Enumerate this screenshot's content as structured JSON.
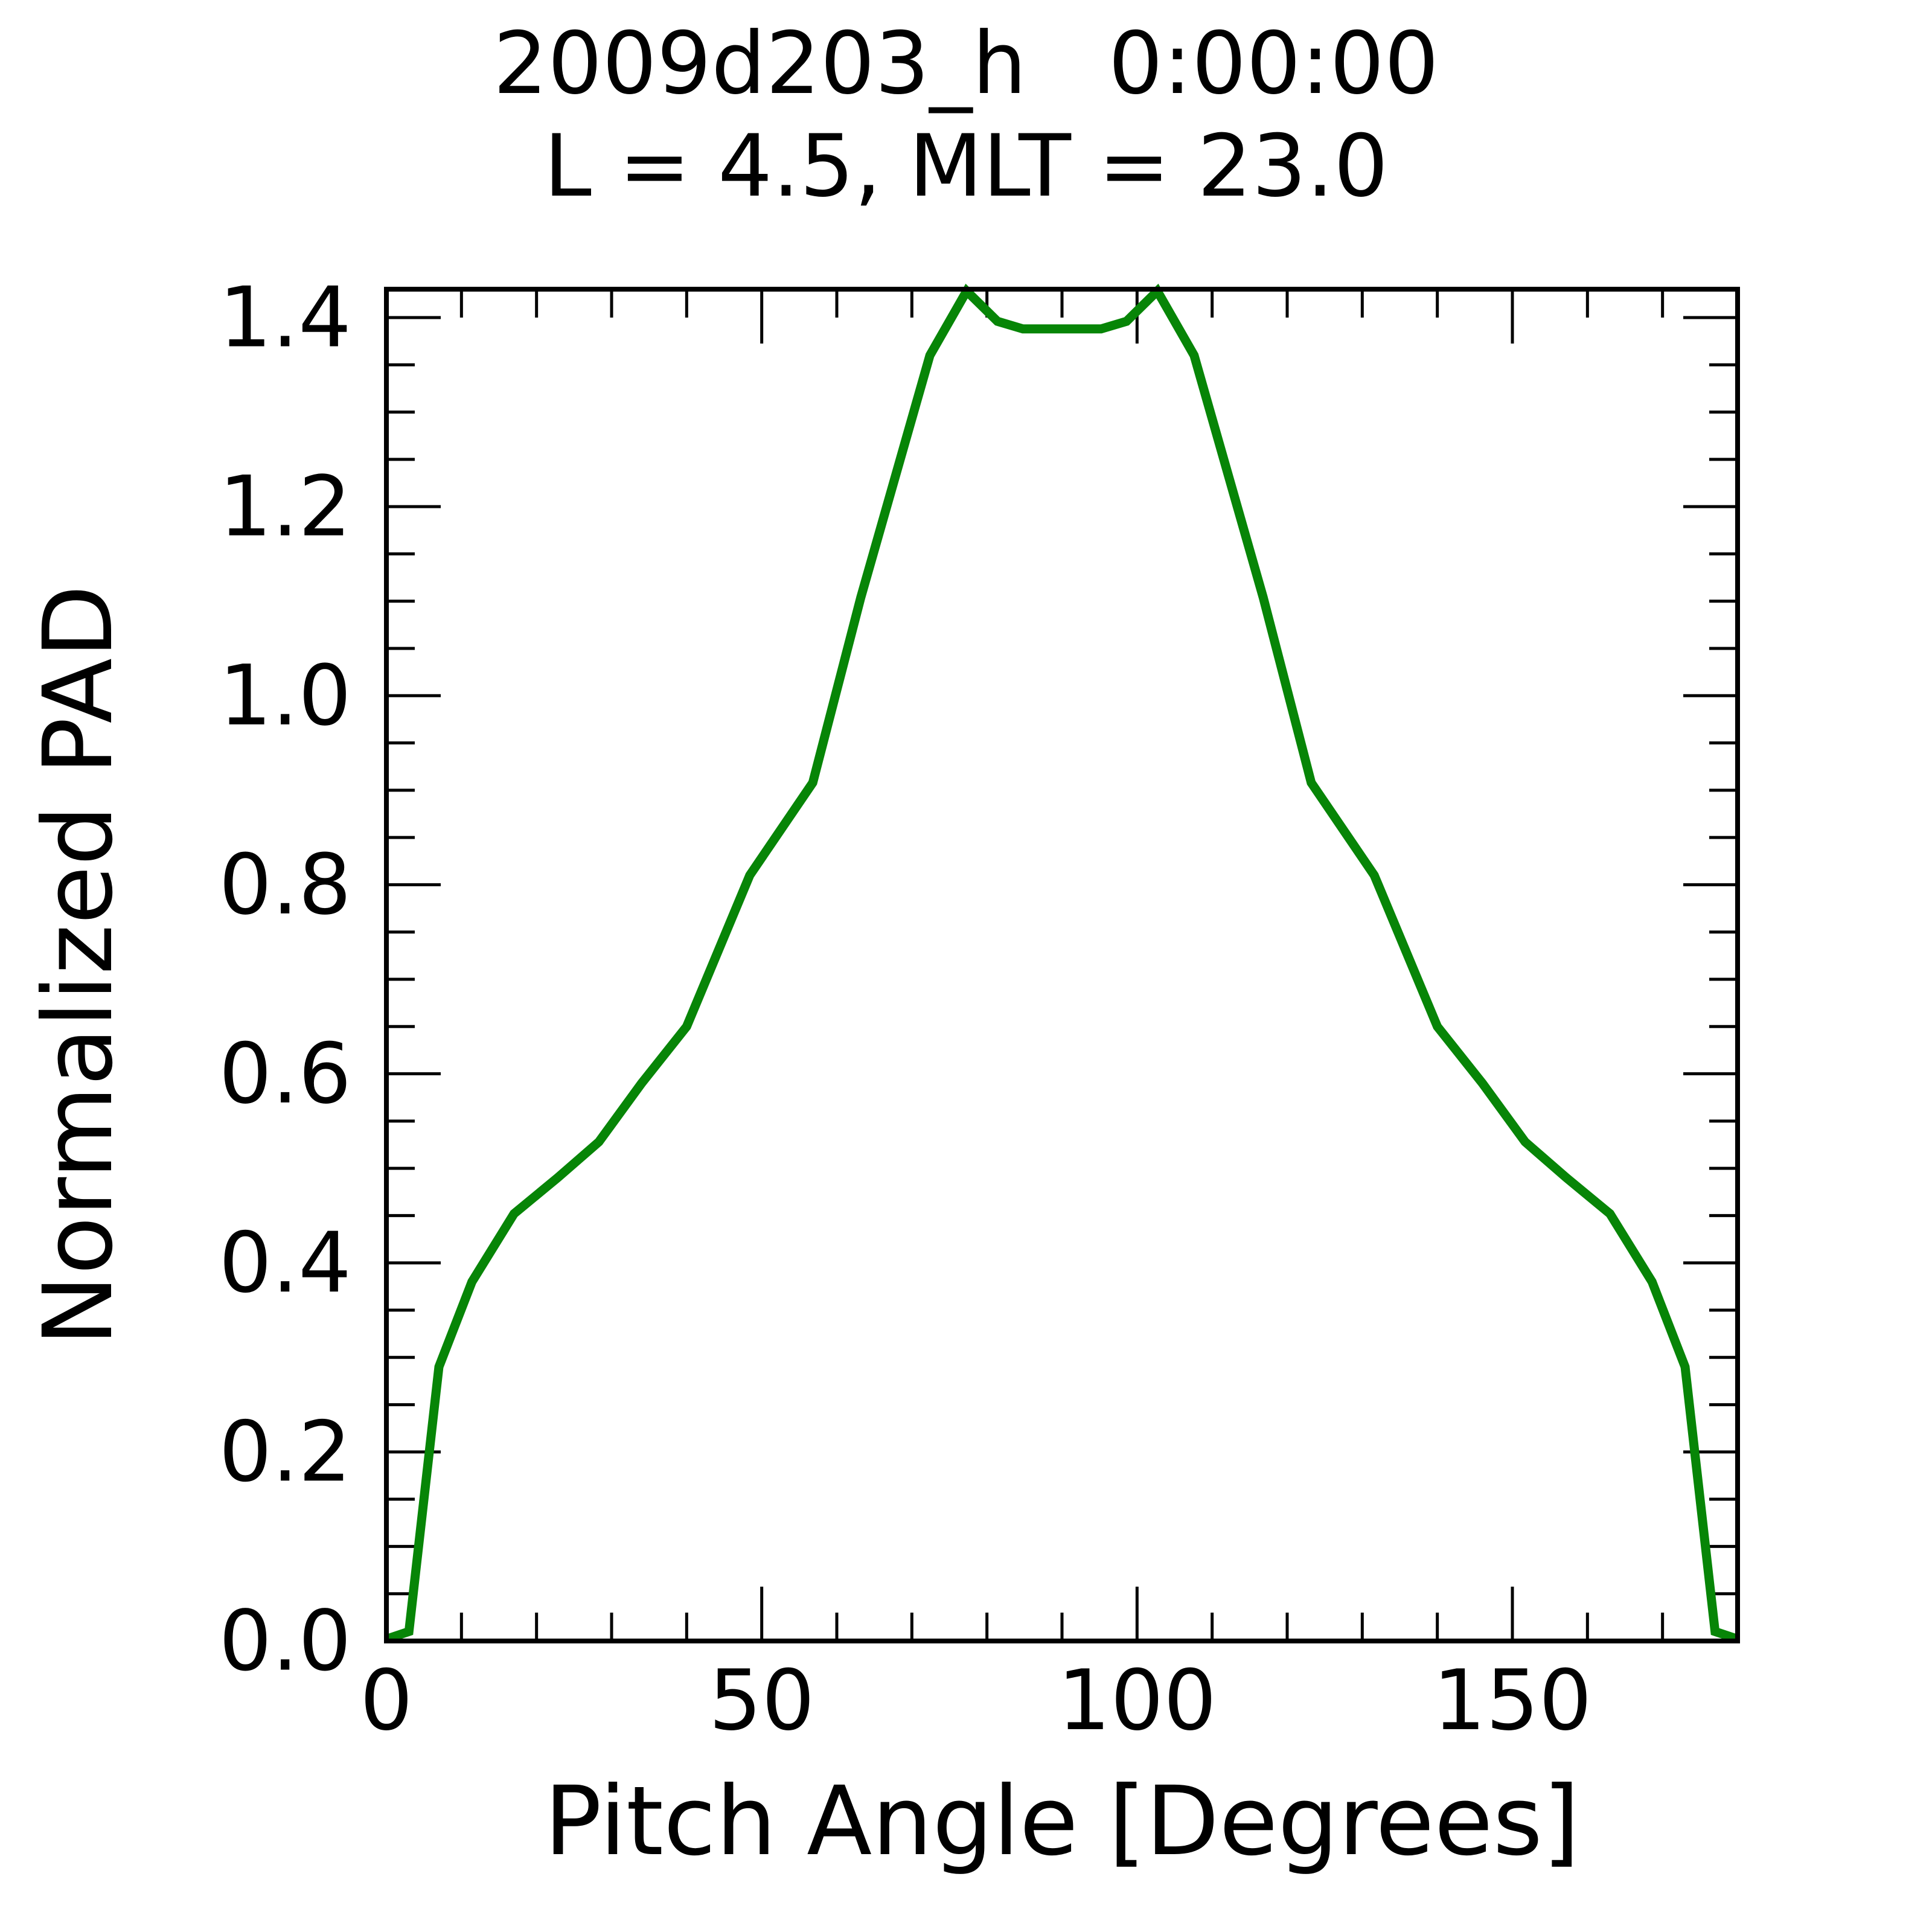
{
  "colors": {
    "curve": "#078507",
    "axes": "#000000",
    "background": "#ffffff",
    "text": "#000000"
  },
  "chart_data": {
    "type": "line",
    "title": "2009d203_h   0:00:00",
    "subtitle": "L = 4.5, MLT = 23.0",
    "xlabel": "Pitch Angle [Degrees]",
    "ylabel": "Normalized PAD",
    "xlim": [
      0,
      180
    ],
    "ylim": [
      0,
      1.43
    ],
    "grid": false,
    "legend": "none",
    "x_ticks": {
      "major": [
        0,
        50,
        100,
        150
      ],
      "labels": [
        "0",
        "50",
        "100",
        "150"
      ],
      "minor_step": 10
    },
    "y_ticks": {
      "major": [
        0.0,
        0.2,
        0.4,
        0.6,
        0.8,
        1.0,
        1.2,
        1.4
      ],
      "labels": [
        "0.0",
        "0.2",
        "0.4",
        "0.6",
        "0.8",
        "1.0",
        "1.2",
        "1.4"
      ],
      "minor_step": 0.05
    },
    "series": [
      {
        "name": "normalized-pad",
        "color": "#078507",
        "points": [
          [
            0,
            0.002
          ],
          [
            3,
            0.01
          ],
          [
            7,
            0.29
          ],
          [
            11.4,
            0.38
          ],
          [
            17,
            0.452
          ],
          [
            22.8,
            0.49
          ],
          [
            28.3,
            0.528
          ],
          [
            34,
            0.59
          ],
          [
            40,
            0.65
          ],
          [
            48.4,
            0.81
          ],
          [
            56.8,
            0.908
          ],
          [
            63.2,
            1.104
          ],
          [
            72.4,
            1.36
          ],
          [
            77.3,
            1.428
          ],
          [
            81.4,
            1.396
          ],
          [
            84.8,
            1.388
          ],
          [
            95.2,
            1.388
          ],
          [
            98.6,
            1.396
          ],
          [
            102.7,
            1.428
          ],
          [
            107.6,
            1.36
          ],
          [
            116.8,
            1.104
          ],
          [
            123.2,
            0.908
          ],
          [
            131.6,
            0.81
          ],
          [
            140,
            0.65
          ],
          [
            146,
            0.59
          ],
          [
            151.7,
            0.528
          ],
          [
            157.2,
            0.49
          ],
          [
            163,
            0.452
          ],
          [
            168.6,
            0.38
          ],
          [
            173,
            0.29
          ],
          [
            177,
            0.01
          ],
          [
            180,
            0.002
          ]
        ]
      }
    ]
  }
}
